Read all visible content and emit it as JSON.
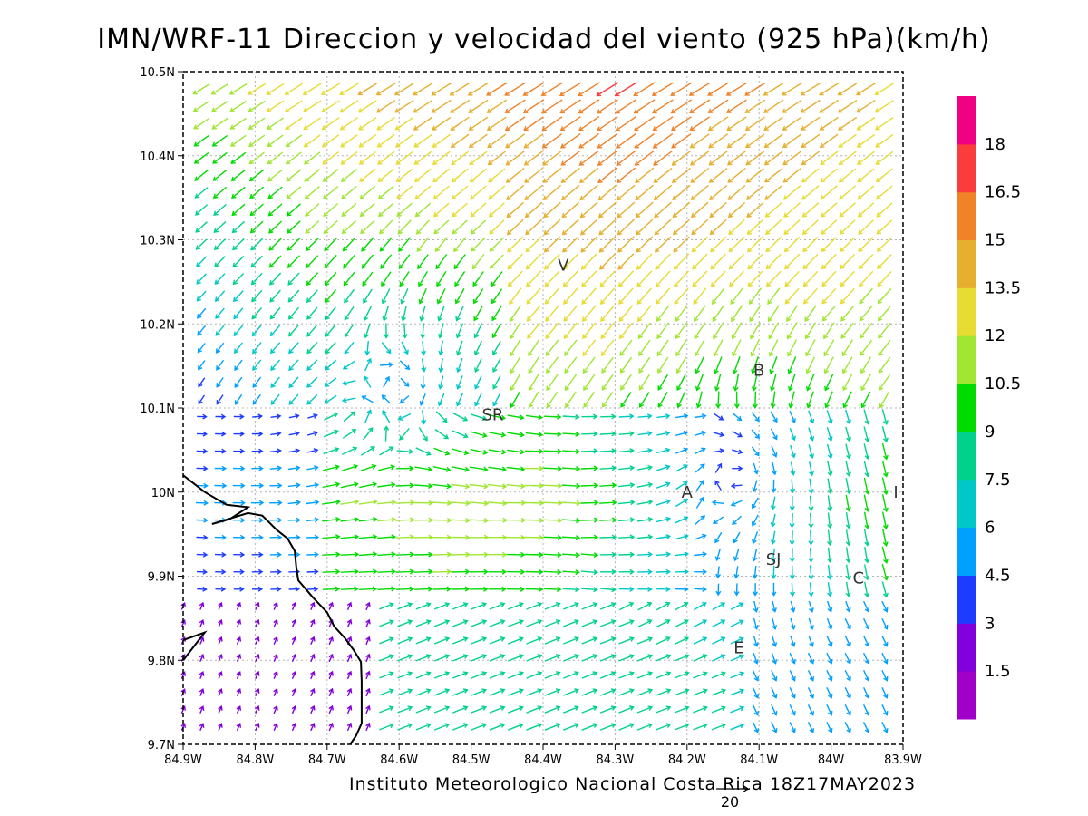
{
  "title": "IMN/WRF-11 Direccion y velocidad del viento (925 hPa)(km/h)",
  "footer": "Instituto Meteorologico Nacional Costa Rica 18Z17MAY2023",
  "reference_vector": {
    "label": "20",
    "speed": 20
  },
  "axes": {
    "x_ticks": [
      {
        "value": -84.9,
        "label": "84.9W"
      },
      {
        "value": -84.8,
        "label": "84.8W"
      },
      {
        "value": -84.7,
        "label": "84.7W"
      },
      {
        "value": -84.6,
        "label": "84.6W"
      },
      {
        "value": -84.5,
        "label": "84.5W"
      },
      {
        "value": -84.4,
        "label": "84.4W"
      },
      {
        "value": -84.3,
        "label": "84.3W"
      },
      {
        "value": -84.2,
        "label": "84.2W"
      },
      {
        "value": -84.1,
        "label": "84.1W"
      },
      {
        "value": -84.0,
        "label": "84W"
      },
      {
        "value": -83.9,
        "label": "83.9W"
      }
    ],
    "y_ticks": [
      {
        "value": 9.7,
        "label": "9.7N"
      },
      {
        "value": 9.8,
        "label": "9.8N"
      },
      {
        "value": 9.9,
        "label": "9.9N"
      },
      {
        "value": 10.0,
        "label": "10N"
      },
      {
        "value": 10.1,
        "label": "10.1N"
      },
      {
        "value": 10.2,
        "label": "10.2N"
      },
      {
        "value": 10.3,
        "label": "10.3N"
      },
      {
        "value": 10.4,
        "label": "10.4N"
      },
      {
        "value": 10.5,
        "label": "10.5N"
      }
    ],
    "xlim": [
      -84.9,
      -83.9
    ],
    "ylim": [
      9.7,
      10.5
    ],
    "grid": true
  },
  "places": [
    {
      "label": "V",
      "lon": -84.372,
      "lat": 10.27
    },
    {
      "label": "SR",
      "lon": -84.47,
      "lat": 10.092
    },
    {
      "label": "B",
      "lon": -84.1,
      "lat": 10.145
    },
    {
      "label": "A",
      "lon": -84.2,
      "lat": 10.0
    },
    {
      "label": "I",
      "lon": -83.91,
      "lat": 10.0
    },
    {
      "label": "SJ",
      "lon": -84.08,
      "lat": 9.92
    },
    {
      "label": "C",
      "lon": -83.962,
      "lat": 9.898
    },
    {
      "label": "E",
      "lon": -84.128,
      "lat": 9.815
    }
  ],
  "legend": {
    "labels": [
      "1.5",
      "3",
      "4.5",
      "6",
      "7.5",
      "9",
      "10.5",
      "12",
      "13.5",
      "15",
      "16.5",
      "18"
    ],
    "colors": [
      "#a000c8",
      "#8200dc",
      "#1e3cff",
      "#00a0ff",
      "#00c8c8",
      "#00d28c",
      "#00dc00",
      "#a0e632",
      "#e6dc32",
      "#e6af2d",
      "#f08228",
      "#fa3c3c",
      "#f00082"
    ]
  },
  "coastline": [
    [
      -84.9,
      10.02
    ],
    [
      -84.87,
      10.0
    ],
    [
      -84.84,
      9.985
    ],
    [
      -84.81,
      9.982
    ],
    [
      -84.835,
      9.968
    ],
    [
      -84.86,
      9.962
    ],
    [
      -84.81,
      9.975
    ],
    [
      -84.79,
      9.972
    ],
    [
      -84.77,
      9.955
    ],
    [
      -84.755,
      9.945
    ],
    [
      -84.745,
      9.93
    ],
    [
      -84.743,
      9.912
    ],
    [
      -84.74,
      9.895
    ],
    [
      -84.72,
      9.875
    ],
    [
      -84.7,
      9.857
    ],
    [
      -84.69,
      9.84
    ],
    [
      -84.675,
      9.826
    ],
    [
      -84.663,
      9.812
    ],
    [
      -84.653,
      9.798
    ],
    [
      -84.652,
      9.775
    ],
    [
      -84.652,
      9.748
    ],
    [
      -84.652,
      9.725
    ],
    [
      -84.66,
      9.71
    ],
    [
      -84.668,
      9.7
    ]
  ],
  "coastline_peninsula": [
    [
      -84.9,
      9.824
    ],
    [
      -84.87,
      9.833
    ],
    [
      -84.9,
      9.8
    ]
  ],
  "wind_field": {
    "lon_start": -84.9,
    "lon_step": 0.02564,
    "lon_count": 40,
    "lat_start": 9.7,
    "lat_step": 0.02051,
    "lat_count": 40,
    "vortices": [
      {
        "lon": -84.6,
        "lat": 10.12,
        "strength": 5,
        "radius": 0.08
      },
      {
        "lon": -84.13,
        "lat": 10.02,
        "strength": 4,
        "radius": 0.09
      }
    ]
  }
}
